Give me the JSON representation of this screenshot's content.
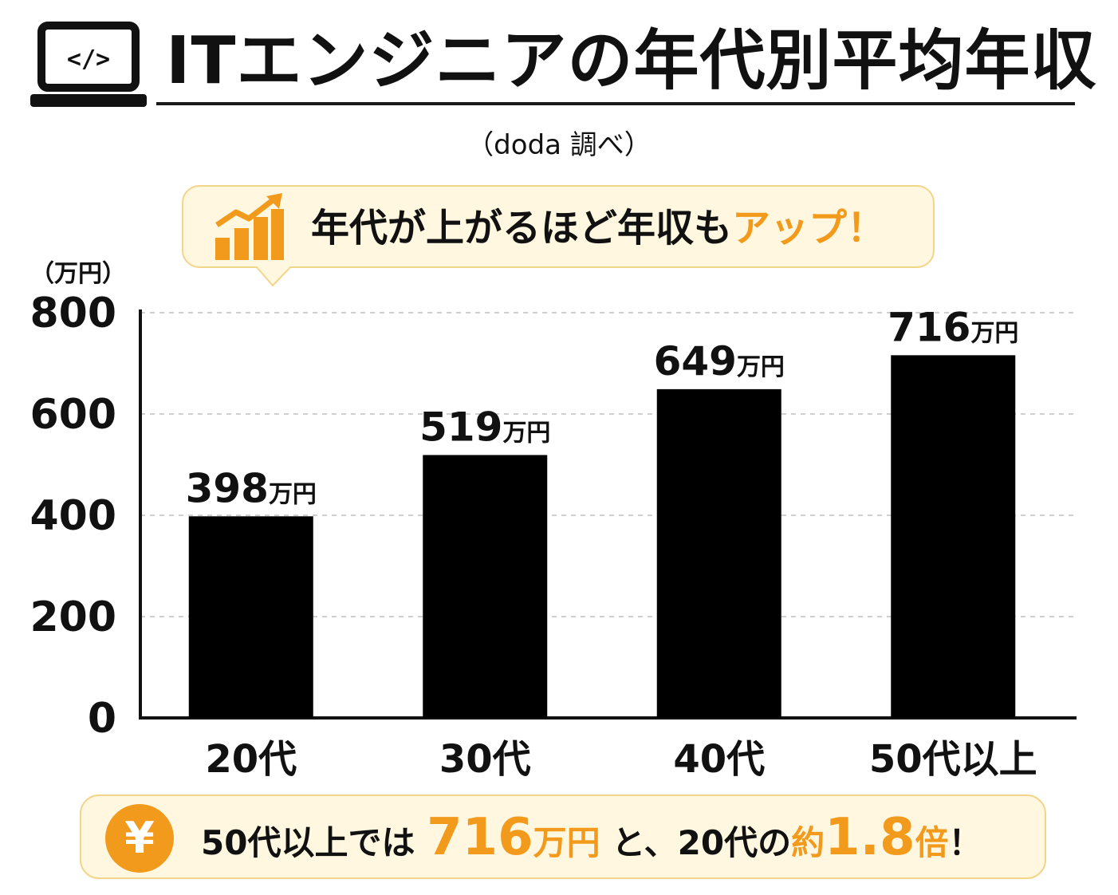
{
  "header": {
    "title": "ITエンジニアの年代別平均年収",
    "source": "（doda 調べ）",
    "icon": "laptop-code-icon"
  },
  "callout": {
    "text_main": "年代が上がるほど年収も",
    "text_accent": "アップ！",
    "icon": "trend-up-chart-icon"
  },
  "colors": {
    "accent": "#f29a1c",
    "bar": "#000000",
    "panel_bg": "#fff7e0",
    "panel_border": "#f3d58a"
  },
  "chart_data": {
    "type": "bar",
    "categories": [
      "20代",
      "30代",
      "40代",
      "50代以上"
    ],
    "values": [
      398,
      519,
      649,
      716
    ],
    "value_labels": [
      "398",
      "519",
      "649",
      "716"
    ],
    "value_unit": "万円",
    "ylabel": "（万円）",
    "ylim": [
      0,
      800
    ],
    "yticks": [
      "0",
      "200",
      "400",
      "600",
      "800"
    ],
    "grid": true
  },
  "summary": {
    "icon": "yen-icon",
    "icon_glyph": "¥",
    "part1": "50代以上では ",
    "highlight_value": "716",
    "highlight_unit": "万円",
    "part2": " と、20代の",
    "ratio_prefix": "約",
    "ratio_value": "1.8",
    "ratio_suffix": "倍",
    "ending": "！"
  }
}
